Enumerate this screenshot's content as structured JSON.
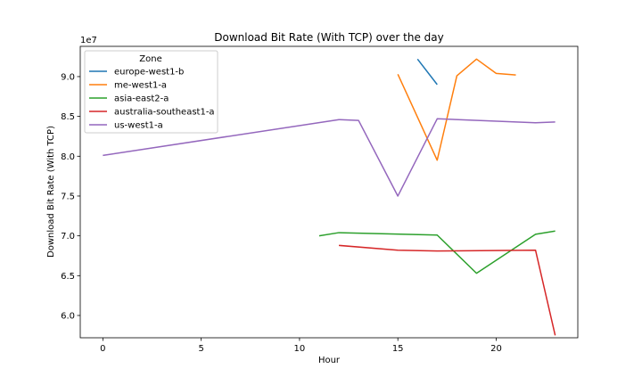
{
  "chart_data": {
    "type": "line",
    "title": "Download Bit Rate (With TCP) over the day",
    "xlabel": "Hour",
    "ylabel": "Download Bit Rate (With TCP)",
    "y_offset_label": "1e7",
    "xlim": [
      -1.15,
      24.15
    ],
    "ylim": [
      57200000,
      93800000
    ],
    "x_ticks": [
      0,
      5,
      10,
      15,
      20
    ],
    "y_ticks": [
      60000000,
      65000000,
      70000000,
      75000000,
      80000000,
      85000000,
      90000000
    ],
    "y_tick_labels": [
      "6.0",
      "6.5",
      "7.0",
      "7.5",
      "8.0",
      "8.5",
      "9.0"
    ],
    "grid": false,
    "legend": {
      "title": "Zone",
      "placement": "top-left"
    },
    "series": [
      {
        "name": "europe-west1-b",
        "color": "#1f77b4",
        "x": [
          16,
          17
        ],
        "y": [
          92200000,
          89000000
        ]
      },
      {
        "name": "me-west1-a",
        "color": "#ff7f0e",
        "x": [
          15,
          17,
          18,
          19,
          20,
          21
        ],
        "y": [
          90300000,
          79500000,
          90100000,
          92200000,
          90400000,
          90200000
        ]
      },
      {
        "name": "asia-east2-a",
        "color": "#2ca02c",
        "x": [
          11,
          12,
          17,
          19,
          22,
          23
        ],
        "y": [
          70000000,
          70400000,
          70100000,
          65300000,
          70200000,
          70600000
        ]
      },
      {
        "name": "australia-southeast1-a",
        "color": "#d62728",
        "x": [
          12,
          15,
          17,
          22,
          23
        ],
        "y": [
          68800000,
          68200000,
          68100000,
          68200000,
          57500000
        ]
      },
      {
        "name": "us-west1-a",
        "color": "#9467bd",
        "x": [
          0,
          12,
          13,
          15,
          17,
          22,
          23
        ],
        "y": [
          80100000,
          84600000,
          84500000,
          75000000,
          84700000,
          84200000,
          84300000
        ]
      }
    ]
  }
}
